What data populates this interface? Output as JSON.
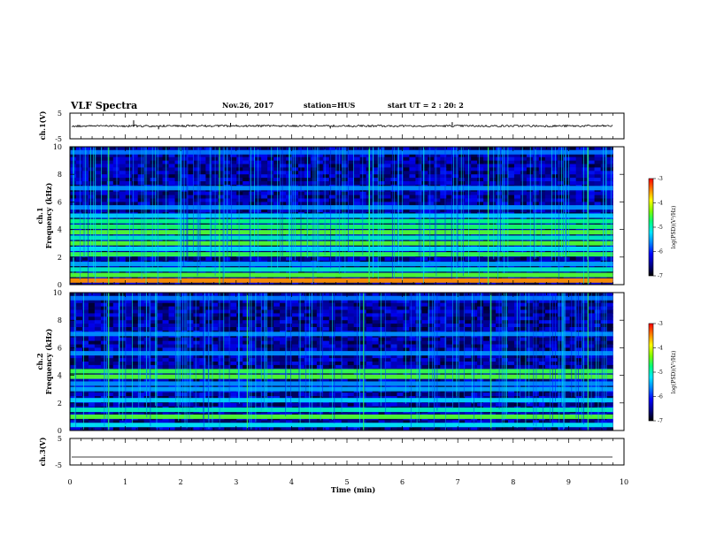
{
  "header": {
    "title": "VLF Spectra",
    "date": "Nov.26, 2017",
    "station": "station=HUS",
    "start": "start  UT =  2 : 20: 2"
  },
  "chart_data": [
    {
      "type": "line",
      "panel": "ch1-voltage",
      "ylabel": "ch.1(V)",
      "ylim": [
        -5,
        5
      ],
      "yticks": [
        "5",
        "-5"
      ],
      "xlim": [
        0,
        10
      ],
      "trace_mean": 0.0,
      "trace_span": 0.8,
      "trace_end": 9.8,
      "spikes": [
        {
          "x": 1.15,
          "y": 2.2
        },
        {
          "x": 1.6,
          "y": -1.3
        },
        {
          "x": 2.9,
          "y": 1.2
        },
        {
          "x": 6.9,
          "y": 1.5
        },
        {
          "x": 4.7,
          "y": -1.0
        }
      ]
    },
    {
      "type": "heatmap",
      "panel": "ch1-spectrogram",
      "ylabel": "ch.1",
      "ylabel2": "Frequency (kHz)",
      "ylim": [
        0,
        10
      ],
      "yticks": [
        "0",
        "2",
        "4",
        "6",
        "8",
        "10"
      ],
      "xlim": [
        0,
        10
      ],
      "data_end": 9.8,
      "colorbar": {
        "label": "log(PSD)(V²/Hz)",
        "range": [
          -7,
          -3
        ],
        "ticks": [
          "-3",
          "-4",
          "-5",
          "-6",
          "-7"
        ]
      },
      "bands_khz": [
        0.3,
        0.7,
        1.1,
        1.5,
        2.2,
        2.6,
        3.0,
        3.4,
        3.8,
        4.2,
        4.6,
        5.0,
        5.6,
        7.0,
        9.6
      ],
      "band_levels": [
        -3.5,
        -4.5,
        -5.0,
        -5.5,
        -4.6,
        -5.2,
        -4.5,
        -5.0,
        -4.5,
        -4.7,
        -4.8,
        -5.3,
        -5.6,
        -5.6,
        -5.7
      ],
      "bright_lines_min": [
        0.7,
        2.7,
        5.4,
        7.55,
        9.35
      ]
    },
    {
      "type": "heatmap",
      "panel": "ch2-spectrogram",
      "ylabel": "ch.2",
      "ylabel2": "Frequency (kHz)",
      "ylim": [
        0,
        10
      ],
      "yticks": [
        "0",
        "2",
        "4",
        "6",
        "8",
        "10"
      ],
      "xlim": [
        0,
        10
      ],
      "data_end": 9.8,
      "colorbar": {
        "label": "log(PSD)(V²/Hz)",
        "range": [
          -7,
          -3
        ],
        "ticks": [
          "-3",
          "-4",
          "-5",
          "-6",
          "-7"
        ]
      },
      "bands_khz": [
        0.4,
        1.0,
        1.5,
        2.2,
        3.0,
        3.4,
        3.9,
        4.3,
        5.6,
        7.0,
        9.6
      ],
      "band_levels": [
        -5.2,
        -4.5,
        -5.0,
        -5.3,
        -5.5,
        -5.6,
        -4.5,
        -4.6,
        -5.6,
        -5.6,
        -5.7
      ],
      "bright_lines_min": [
        0.7,
        3.2,
        5.3,
        7.6,
        9.35
      ]
    },
    {
      "type": "line",
      "panel": "ch3-voltage",
      "ylabel": "ch.3(V)",
      "ylim": [
        -5,
        5
      ],
      "yticks": [
        "5",
        "-5"
      ],
      "xlim": [
        0,
        10
      ],
      "trace_mean": -2.0,
      "trace_span": 0.0,
      "trace_end": 9.8,
      "spikes": [],
      "xlabel": "Time (min)",
      "xticks": [
        "0",
        "1",
        "2",
        "3",
        "4",
        "5",
        "6",
        "7",
        "8",
        "9",
        "10"
      ]
    }
  ],
  "colors": {
    "map": [
      "#000000",
      "#00008b",
      "#0000ff",
      "#0080ff",
      "#00e5ff",
      "#00ff7f",
      "#7fff00",
      "#ffff00",
      "#ff8000",
      "#ff0000",
      "#ffffff"
    ]
  }
}
